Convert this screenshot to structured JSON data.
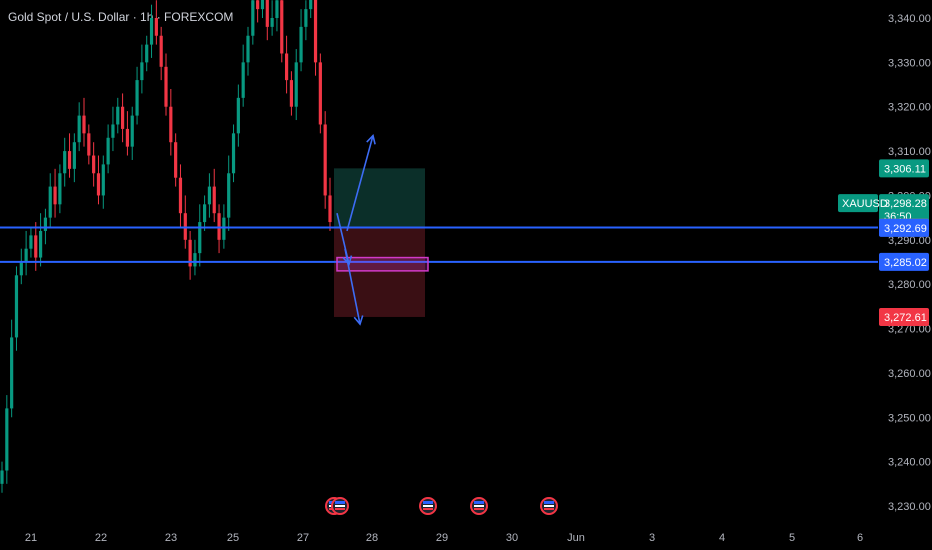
{
  "header": {
    "symbol_title": "Gold Spot / U.S. Dollar · 1h · FOREXCOM"
  },
  "colors": {
    "background": "#000000",
    "up": "#089981",
    "down": "#f23645",
    "line": "#2962ff",
    "target_zone": "#0b2f29",
    "stop_zone": "#3a0f14",
    "entry_box": "#d23ac9",
    "arrow": "#3d6cf5"
  },
  "chart_data": {
    "type": "candlestick",
    "instrument": "XAUUSD",
    "ylim": [
      3225,
      3345
    ],
    "y_ticks": [
      {
        "value": 3340,
        "label": "3,340.00"
      },
      {
        "value": 3330,
        "label": "3,330.00"
      },
      {
        "value": 3320,
        "label": "3,320.00"
      },
      {
        "value": 3310,
        "label": "3,310.00"
      },
      {
        "value": 3300,
        "label": "3,300.00"
      },
      {
        "value": 3290,
        "label": "3,290.00"
      },
      {
        "value": 3280,
        "label": "3,280.00"
      },
      {
        "value": 3270,
        "label": "3,270.00"
      },
      {
        "value": 3260,
        "label": "3,260.00"
      },
      {
        "value": 3250,
        "label": "3,250.00"
      },
      {
        "value": 3240,
        "label": "3,240.00"
      },
      {
        "value": 3230,
        "label": "3,230.00"
      }
    ],
    "x_ticks": [
      "21",
      "22",
      "23",
      "25",
      "27",
      "28",
      "29",
      "30",
      "Jun",
      "3",
      "4",
      "5",
      "6"
    ],
    "candles_close": [
      3238,
      3252,
      3268,
      3282,
      3285,
      3288,
      3291,
      3286,
      3292,
      3295,
      3302,
      3298,
      3305,
      3310,
      3306,
      3312,
      3318,
      3314,
      3309,
      3305,
      3300,
      3307,
      3313,
      3316,
      3320,
      3315,
      3311,
      3318,
      3326,
      3330,
      3334,
      3340,
      3336,
      3329,
      3320,
      3312,
      3304,
      3296,
      3290,
      3284,
      3287,
      3294,
      3298,
      3302,
      3296,
      3290,
      3295,
      3305,
      3314,
      3322,
      3330,
      3336,
      3344,
      3342,
      3345,
      3338,
      3340,
      3344,
      3332,
      3326,
      3320,
      3330,
      3338,
      3342,
      3345,
      3330,
      3316,
      3300,
      3294
    ],
    "reference_lines": [
      3292.78,
      3285.02
    ],
    "price_badges": [
      {
        "value": 3306.11,
        "label": "3,306.11",
        "color": "#089981"
      },
      {
        "value": 3298.28,
        "label": "3,298.28",
        "countdown": "36:50",
        "color": "#089981",
        "name": "XAUUSD"
      },
      {
        "value": 3292.78,
        "label": "3,292.78",
        "color": "#787b86"
      },
      {
        "value": 3292.69,
        "label": "3,292.69",
        "color": "#2962ff"
      },
      {
        "value": 3285.02,
        "label": "3,285.02",
        "color": "#2962ff"
      },
      {
        "value": 3272.61,
        "label": "3,272.61",
        "color": "#f23645"
      }
    ],
    "position": {
      "target": 3306.11,
      "entry": 3292.78,
      "stop": 3272.61
    },
    "entry_box": {
      "high": 3286.0,
      "low": 3283.0
    },
    "arrows": [
      {
        "from": 3292.0,
        "to": 3313.5
      },
      {
        "from": 3288.0,
        "to": 3271.0
      },
      {
        "from": 3296.0,
        "to": 3284.5
      }
    ],
    "events_count": 5
  }
}
